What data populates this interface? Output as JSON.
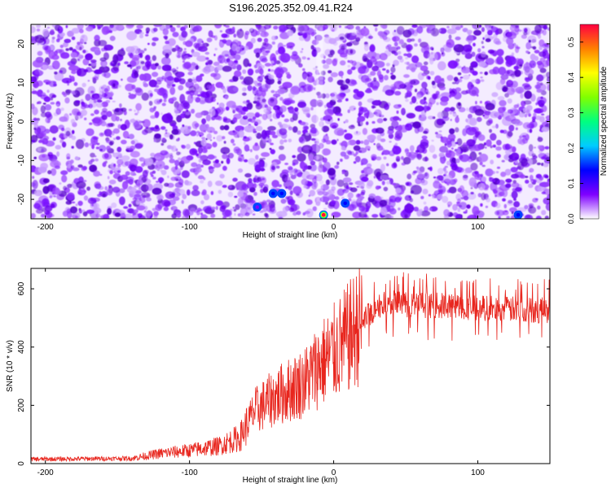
{
  "title": "S196.2025.352.09.41.R24",
  "chart_data": [
    {
      "type": "heatmap",
      "xlabel": "Height of straight line (km)",
      "ylabel": "Frequency (Hz)",
      "xlim": [
        -210,
        150
      ],
      "ylim": [
        -25,
        25
      ],
      "x_ticks": [
        "-200",
        "-100",
        "0",
        "100"
      ],
      "y_ticks": [
        "-20",
        "-10",
        "0",
        "10",
        "20"
      ],
      "colorbar": {
        "label": "Normalized spectral amplitude",
        "range": [
          0,
          0.55
        ],
        "ticks": [
          "0.0",
          "0.1",
          "0.2",
          "0.3",
          "0.4",
          "0.5"
        ],
        "colors": [
          "#ffffff",
          "#7f00ff",
          "#0000ff",
          "#00ccff",
          "#00ff80",
          "#80ff00",
          "#ffff00",
          "#ff8000",
          "#ff0040"
        ]
      },
      "hot_spots": [
        {
          "x": -7,
          "y": -24,
          "value": 0.55
        },
        {
          "x": -36,
          "y": -18.5,
          "value": 0.15
        },
        {
          "x": -42,
          "y": -18.5,
          "value": 0.12
        },
        {
          "x": 8,
          "y": -21,
          "value": 0.12
        },
        {
          "x": -53,
          "y": -22,
          "value": 0.1
        },
        {
          "x": 128,
          "y": -24,
          "value": 0.12
        }
      ]
    },
    {
      "type": "line",
      "xlabel": "Height of straight line (km)",
      "ylabel": "SNR (10 * v/v)",
      "xlim": [
        -210,
        150
      ],
      "ylim": [
        0,
        670
      ],
      "x_ticks": [
        "-200",
        "-100",
        "0",
        "100"
      ],
      "y_ticks": [
        "0",
        "200",
        "400",
        "600"
      ],
      "color": "#e8261e",
      "envelope": {
        "x": [
          -210,
          -140,
          -120,
          -100,
          -80,
          -65,
          -55,
          -40,
          -20,
          -10,
          0,
          10,
          20,
          30,
          40,
          60,
          80,
          100,
          120,
          150
        ],
        "y": [
          15,
          18,
          35,
          45,
          60,
          90,
          180,
          230,
          280,
          340,
          380,
          430,
          490,
          540,
          550,
          545,
          540,
          535,
          530,
          525
        ]
      }
    }
  ]
}
